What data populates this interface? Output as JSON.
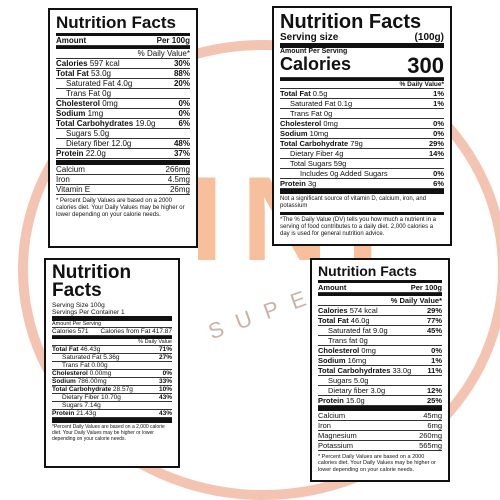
{
  "watermark": {
    "text": "INI",
    "subtext": "SUPER"
  },
  "panel_a": {
    "title": "Nutrition Facts",
    "amount_label": "Amount",
    "per_label": "Per 100g",
    "dv_header": "% Daily Value*",
    "rows": [
      {
        "name": "Calories",
        "amount": "597 kcal",
        "dv": "30%",
        "bold": true
      },
      {
        "name": "Total Fat",
        "amount": "53.0g",
        "dv": "88%",
        "bold": true
      },
      {
        "name": "Saturated Fat",
        "amount": "4.0g",
        "dv": "20%",
        "indent": true
      },
      {
        "name": "Trans Fat",
        "amount": "0g",
        "dv": "",
        "indent": true
      },
      {
        "name": "Cholesterol",
        "amount": "0mg",
        "dv": "0%",
        "bold": true
      },
      {
        "name": "Sodium",
        "amount": "1mg",
        "dv": "0%",
        "bold": true
      },
      {
        "name": "Total Carbohydrates",
        "amount": "19.0g",
        "dv": "6%",
        "bold": true
      },
      {
        "name": "Sugars",
        "amount": "5.0g",
        "dv": "",
        "indent": true
      },
      {
        "name": "Dietary fiber",
        "amount": "12.0g",
        "dv": "48%",
        "indent": true
      },
      {
        "name": "Protein",
        "amount": "22.0g",
        "dv": "37%",
        "bold": true
      }
    ],
    "minerals": [
      {
        "name": "Calcium",
        "value": "266mg"
      },
      {
        "name": "Iron",
        "value": "4.5mg"
      },
      {
        "name": "Vitamin E",
        "value": "26mg"
      }
    ],
    "footnote": "* Percent Daily Values are based on a 2000 calories diet. Your Daily Values may be higher or lower depending on your calorie needs."
  },
  "panel_b": {
    "title": "Nutrition Facts",
    "serving_label": "Serving size",
    "serving_value": "(100g)",
    "amount_label": "Amount Per Serving",
    "calories_label": "Calories",
    "calories_value": "300",
    "dv_header": "% Daily Value*",
    "rows": [
      {
        "name": "Total Fat",
        "amount": "0.5g",
        "dv": "1%",
        "bold": true
      },
      {
        "name": "Saturated Fat",
        "amount": "0.1g",
        "dv": "1%",
        "indent": true
      },
      {
        "name": "Trans Fat",
        "amount": "0g",
        "dv": "",
        "indent": true
      },
      {
        "name": "Cholesterol",
        "amount": "0mg",
        "dv": "0%",
        "bold": true
      },
      {
        "name": "Sodium",
        "amount": "10mg",
        "dv": "0%",
        "bold": true
      },
      {
        "name": "Total Carbohydrate",
        "amount": "79g",
        "dv": "29%",
        "bold": true
      },
      {
        "name": "Dietary Fiber",
        "amount": "4g",
        "dv": "14%",
        "indent": true
      },
      {
        "name": "Total Sugars",
        "amount": "59g",
        "dv": "",
        "indent": true
      },
      {
        "name": "Includes",
        "amount": "0g Added Sugars",
        "dv": "0%",
        "indent2": true
      },
      {
        "name": "Protein",
        "amount": "3g",
        "dv": "6%",
        "bold": true
      }
    ],
    "note": "Not a significant source of vitamin D, calcium, iron, and potassium",
    "footnote": "*The % Daily Value (DV) tells you how much a nutrient in a serving of food contributes to a daily diet. 2,000 calories a day is used for general nutrition advice."
  },
  "panel_c": {
    "title": "Nutrition Facts",
    "serving_size": "Serving Size 100g",
    "servings": "Servings Per Container 1",
    "amount_label": "Amount Per Serving",
    "calories": "Calories 571",
    "calories_fat": "Calories from Fat 417.87",
    "dv_header": "% Daily Value",
    "rows": [
      {
        "name": "Total Fat",
        "amount": "46.43g",
        "dv": "71%",
        "bold": true
      },
      {
        "name": "Saturated Fat",
        "amount": "5.36g",
        "dv": "27%",
        "indent": true
      },
      {
        "name": "Trans Fat",
        "amount": "0.00g",
        "dv": "",
        "indent": true
      },
      {
        "name": "Cholesterol",
        "amount": "0.00mg",
        "dv": "0%",
        "bold": true
      },
      {
        "name": "Sodium",
        "amount": "786.00mg",
        "dv": "33%",
        "bold": true
      },
      {
        "name": "Total Carbohydrate",
        "amount": "28.57g",
        "dv": "10%",
        "bold": true
      },
      {
        "name": "Dietary Fiber",
        "amount": "10.70g",
        "dv": "43%",
        "indent": true
      },
      {
        "name": "Sugars",
        "amount": "7.14g",
        "dv": "",
        "indent": true
      },
      {
        "name": "Protein",
        "amount": "21.43g",
        "dv": "43%",
        "bold": true
      }
    ],
    "footnote": "*Percent Daily Values are based on a 2,000 calorie diet. Your Daily Values may be higher or lower depending on your calorie needs."
  },
  "panel_d": {
    "title": "Nutrition Facts",
    "amount_label": "Amount",
    "per_label": "Per 100g",
    "dv_header": "% Daily Value*",
    "rows": [
      {
        "name": "Calories",
        "amount": "574 kcal",
        "dv": "29%",
        "bold": true
      },
      {
        "name": "Total Fat",
        "amount": "46.0g",
        "dv": "77%",
        "bold": true
      },
      {
        "name": "Saturated fat",
        "amount": "9.0g",
        "dv": "45%",
        "indent": true
      },
      {
        "name": "Trans fat",
        "amount": "0g",
        "dv": "",
        "indent": true
      },
      {
        "name": "Cholesterol",
        "amount": "0mg",
        "dv": "0%",
        "bold": true
      },
      {
        "name": "Sodium",
        "amount": "16mg",
        "dv": "1%",
        "bold": true
      },
      {
        "name": "Total Carbohydrates",
        "amount": "33.0g",
        "dv": "11%",
        "bold": true
      },
      {
        "name": "Sugars",
        "amount": "5.0g",
        "dv": "",
        "indent": true
      },
      {
        "name": "Dietary fiber",
        "amount": "3.0g",
        "dv": "12%",
        "indent": true
      },
      {
        "name": "Protein",
        "amount": "15.0g",
        "dv": "25%",
        "bold": true
      }
    ],
    "minerals": [
      {
        "name": "Calcium",
        "value": "45mg"
      },
      {
        "name": "Iron",
        "value": "6mg"
      },
      {
        "name": "Magnesium",
        "value": "260mg"
      },
      {
        "name": "Potassium",
        "value": "565mg"
      }
    ],
    "footnote": "* Percent Daily Values are based on a 2000 calories diet. Your Daily Values may be higher or lower depending on your calorie needs."
  }
}
